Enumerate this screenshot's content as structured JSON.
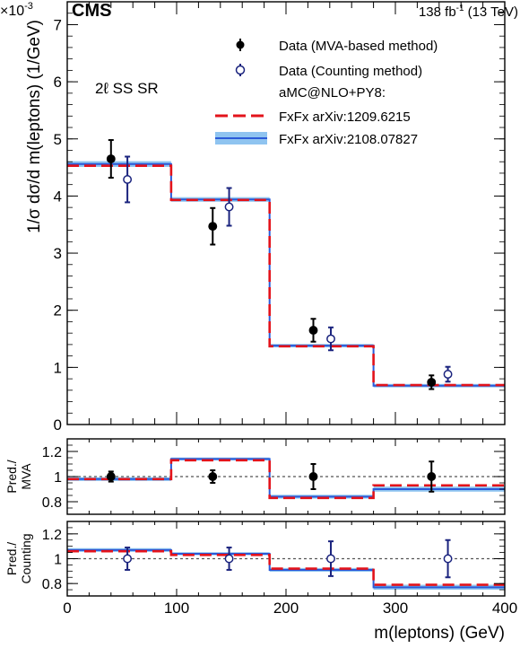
{
  "header": {
    "experiment": "CMS",
    "luminosity": "138 fb",
    "lumi_exp": "-1",
    "energy": "(13 TeV)",
    "scale_prefix": "×10",
    "scale_exp": "-3"
  },
  "legend": {
    "title": "aMC@NLO+PY8:",
    "region": "2ℓ SS SR",
    "entries": [
      "Data (MVA-based method)",
      "Data (Counting method)",
      "FxFx arXiv:1209.6215",
      "FxFx arXiv:2108.07827"
    ]
  },
  "chart_data": [
    {
      "type": "line",
      "panel": "main",
      "ylabel": "1/σ dσ/d m(leptons) (1/GeV)",
      "xlim": [
        0,
        400
      ],
      "ylim": [
        0,
        7.4
      ],
      "y_scale_factor": "×10^-3",
      "y_ticks": [
        0,
        1,
        2,
        3,
        4,
        5,
        6,
        7
      ],
      "bin_edges": [
        0,
        95,
        185,
        280,
        400
      ],
      "series": [
        {
          "name": "Data (MVA-based method)",
          "x": [
            40,
            133,
            225,
            333
          ],
          "y": [
            4.65,
            3.47,
            1.65,
            0.74
          ],
          "yerr": [
            0.33,
            0.32,
            0.2,
            0.12
          ],
          "color": "#000000"
        },
        {
          "name": "Data (Counting method)",
          "x": [
            55,
            148,
            241,
            348
          ],
          "y": [
            4.29,
            3.81,
            1.5,
            0.88
          ],
          "yerr": [
            0.4,
            0.33,
            0.2,
            0.13
          ],
          "color": "#1a237e"
        },
        {
          "name": "FxFx arXiv:1209.6215",
          "y": [
            4.53,
            3.93,
            1.37,
            0.69
          ],
          "color": "#e3131b"
        },
        {
          "name": "FxFx arXiv:2108.07827",
          "y": [
            4.56,
            3.94,
            1.38,
            0.68
          ],
          "band": [
            0.05,
            0.04,
            0.03,
            0.03
          ],
          "color": "#2a5ad8",
          "band_color": "#8fc4f0"
        }
      ]
    },
    {
      "type": "line",
      "panel": "ratio-mva",
      "ylabel_lines": [
        "Pred./",
        "MVA"
      ],
      "xlim": [
        0,
        400
      ],
      "ylim": [
        0.7,
        1.3
      ],
      "y_ticks": [
        0.8,
        1,
        1.2
      ],
      "y_tick_labels": [
        "0.8",
        "1",
        "1.2"
      ],
      "bin_edges": [
        0,
        95,
        185,
        280,
        400
      ],
      "series": [
        {
          "name": "Data (MVA-based method)",
          "x": [
            40,
            133,
            225,
            333
          ],
          "y": [
            1,
            1,
            1,
            1
          ],
          "yerr": [
            0.04,
            0.05,
            0.1,
            0.12
          ]
        },
        {
          "name": "FxFx arXiv:1209.6215",
          "y": [
            0.98,
            1.13,
            0.83,
            0.93
          ]
        },
        {
          "name": "FxFx arXiv:2108.07827",
          "y": [
            0.98,
            1.14,
            0.84,
            0.9
          ],
          "band": [
            0.015,
            0.012,
            0.015,
            0.02
          ]
        }
      ]
    },
    {
      "type": "line",
      "panel": "ratio-counting",
      "ylabel_lines": [
        "Pred./",
        "Counting"
      ],
      "xlabel": "m(leptons) (GeV)",
      "xlim": [
        0,
        400
      ],
      "ylim": [
        0.7,
        1.3
      ],
      "y_ticks": [
        0.8,
        1,
        1.2
      ],
      "y_tick_labels": [
        "0.8",
        "1",
        "1.2"
      ],
      "x_ticks": [
        0,
        100,
        200,
        300,
        400
      ],
      "bin_edges": [
        0,
        95,
        185,
        280,
        400
      ],
      "series": [
        {
          "name": "Data (Counting method)",
          "x": [
            55,
            148,
            241,
            348
          ],
          "y": [
            1,
            1,
            1,
            1
          ],
          "yerr": [
            0.09,
            0.09,
            0.14,
            0.15
          ]
        },
        {
          "name": "FxFx arXiv:1209.6215",
          "y": [
            1.06,
            1.03,
            0.92,
            0.79
          ]
        },
        {
          "name": "FxFx arXiv:2108.07827",
          "y": [
            1.07,
            1.04,
            0.91,
            0.77
          ],
          "band": [
            0.015,
            0.012,
            0.015,
            0.02
          ]
        }
      ]
    }
  ]
}
